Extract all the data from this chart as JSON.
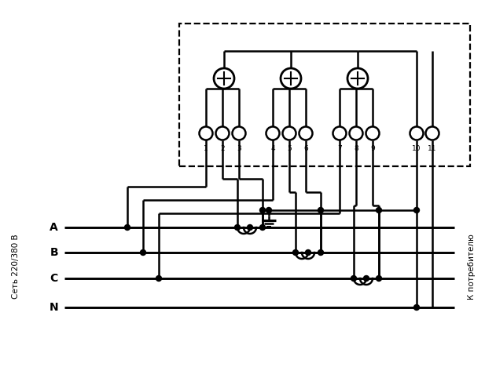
{
  "bg_color": "#ffffff",
  "lw": 1.8,
  "lw_thin": 1.5,
  "left_label": "Сеть 220/380 В",
  "right_label": "К потребителю",
  "phase_labels": [
    "A",
    "B",
    "C",
    "N"
  ],
  "terminal_nums": [
    "1",
    "2",
    "3",
    "4",
    "5",
    "6",
    "7",
    "8",
    "9",
    "10",
    "11"
  ]
}
